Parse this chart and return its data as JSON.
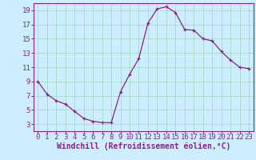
{
  "x": [
    0,
    1,
    2,
    3,
    4,
    5,
    6,
    7,
    8,
    9,
    10,
    11,
    12,
    13,
    14,
    15,
    16,
    17,
    18,
    19,
    20,
    21,
    22,
    23
  ],
  "y": [
    9.0,
    7.2,
    6.3,
    5.8,
    4.8,
    3.8,
    3.4,
    3.2,
    3.2,
    7.5,
    10.0,
    12.2,
    17.2,
    19.2,
    19.5,
    18.7,
    16.3,
    16.2,
    15.0,
    14.7,
    13.2,
    12.0,
    11.0,
    10.8
  ],
  "line_color": "#882288",
  "marker": "+",
  "bg_color": "#cceeff",
  "grid_color": "#aaddcc",
  "axis_color": "#882288",
  "tick_label_color": "#882288",
  "xlabel": "Windchill (Refroidissement éolien,°C)",
  "xlabel_color": "#882288",
  "xlabel_fontsize": 7,
  "tick_fontsize": 6.5,
  "ylim": [
    2,
    20
  ],
  "yticks": [
    3,
    5,
    7,
    9,
    11,
    13,
    15,
    17,
    19
  ],
  "xlim": [
    -0.5,
    23.5
  ],
  "xticks": [
    0,
    1,
    2,
    3,
    4,
    5,
    6,
    7,
    8,
    9,
    10,
    11,
    12,
    13,
    14,
    15,
    16,
    17,
    18,
    19,
    20,
    21,
    22,
    23
  ]
}
